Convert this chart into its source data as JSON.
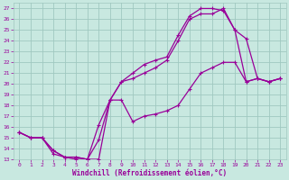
{
  "xlabel": "Windchill (Refroidissement éolien,°C)",
  "background_color": "#c8e8e0",
  "grid_color": "#a0c8c0",
  "line_color": "#990099",
  "xlim": [
    -0.5,
    23.5
  ],
  "ylim": [
    13,
    27.5
  ],
  "xticks": [
    0,
    1,
    2,
    3,
    4,
    5,
    6,
    7,
    8,
    9,
    10,
    11,
    12,
    13,
    14,
    15,
    16,
    17,
    18,
    19,
    20,
    21,
    22,
    23
  ],
  "yticks": [
    13,
    14,
    15,
    16,
    17,
    18,
    19,
    20,
    21,
    22,
    23,
    24,
    25,
    26,
    27
  ],
  "line1_x": [
    0,
    1,
    2,
    3,
    4,
    5,
    6,
    7,
    8,
    9,
    10,
    11,
    12,
    13,
    14,
    15,
    16,
    17,
    18,
    19,
    20,
    21,
    22,
    23
  ],
  "line1_y": [
    15.5,
    15.0,
    15.0,
    13.5,
    13.2,
    13.0,
    13.0,
    13.0,
    18.5,
    18.5,
    16.5,
    17.0,
    17.2,
    17.5,
    18.0,
    19.5,
    21.0,
    21.5,
    22.0,
    22.0,
    20.2,
    20.5,
    20.2,
    20.5
  ],
  "line2_x": [
    0,
    1,
    2,
    3,
    4,
    5,
    6,
    7,
    8,
    9,
    10,
    11,
    12,
    13,
    14,
    15,
    16,
    17,
    18,
    19,
    20,
    21,
    22,
    23
  ],
  "line2_y": [
    15.5,
    15.0,
    15.0,
    13.8,
    13.2,
    13.2,
    13.0,
    14.8,
    18.5,
    20.2,
    21.0,
    21.8,
    22.2,
    22.5,
    24.5,
    26.3,
    27.0,
    27.0,
    26.8,
    25.0,
    24.2,
    20.5,
    20.2,
    20.5
  ],
  "line3_x": [
    0,
    1,
    2,
    3,
    4,
    5,
    6,
    7,
    8,
    9,
    10,
    11,
    12,
    13,
    14,
    15,
    16,
    17,
    18,
    19,
    20,
    21,
    22,
    23
  ],
  "line3_y": [
    15.5,
    15.0,
    15.0,
    13.8,
    13.2,
    13.2,
    13.0,
    16.2,
    18.5,
    20.2,
    20.5,
    21.0,
    21.5,
    22.2,
    24.0,
    26.0,
    26.5,
    26.5,
    27.0,
    25.0,
    20.2,
    20.5,
    20.2,
    20.5
  ]
}
